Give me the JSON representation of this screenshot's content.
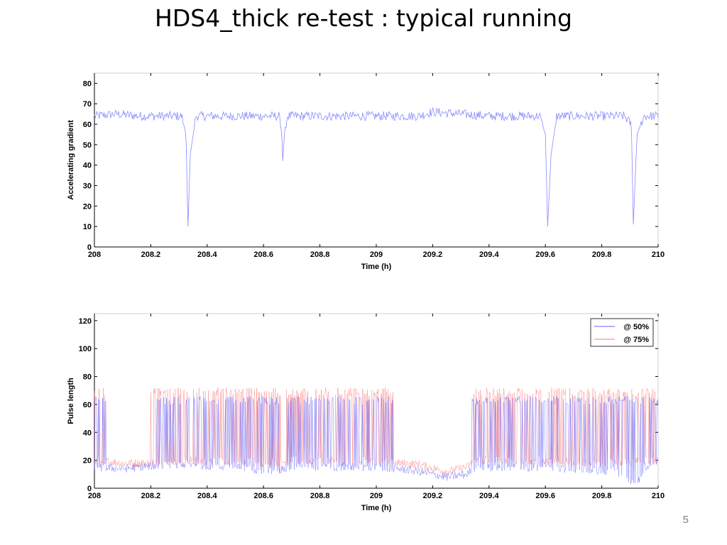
{
  "slide": {
    "title": "HDS4_thick re-test : typical running",
    "page_number": "5"
  },
  "colors": {
    "series_50": "#6666ff",
    "series_75": "#ff7777",
    "gradient": "#8a8aff",
    "axis": "#000000",
    "frame": "#d0d0d0"
  },
  "chart_data": [
    {
      "type": "line",
      "title": "",
      "xlabel": "Time (h)",
      "ylabel": "Accelerating gradient",
      "xlim": [
        208,
        210
      ],
      "ylim": [
        0,
        85
      ],
      "xticks": [
        "208",
        "208.2",
        "208.4",
        "208.6",
        "208.8",
        "209",
        "209.2",
        "209.4",
        "209.6",
        "209.8",
        "210"
      ],
      "yticks": [
        "0",
        "10",
        "20",
        "30",
        "40",
        "50",
        "60",
        "70",
        "80"
      ],
      "grid": false,
      "series": [
        {
          "x": [
            208.0,
            208.08,
            208.16,
            208.24,
            208.31,
            208.325,
            208.332,
            208.34,
            208.36,
            208.45,
            208.55,
            208.645,
            208.655,
            208.665,
            208.668,
            208.675,
            208.685,
            208.72,
            208.85,
            208.95,
            209.05,
            209.15,
            209.2,
            209.3,
            209.4,
            209.5,
            209.58,
            209.6,
            209.608,
            209.62,
            209.64,
            209.75,
            209.88,
            209.905,
            209.912,
            209.925,
            209.95,
            210.0
          ],
          "y": [
            64,
            65,
            64,
            64,
            64,
            55,
            10,
            45,
            64,
            64,
            64,
            64,
            64,
            55,
            42,
            57,
            64,
            64,
            64,
            64,
            64,
            64,
            66,
            65,
            64,
            64,
            64,
            55,
            10,
            45,
            64,
            64,
            64,
            60,
            11,
            55,
            64,
            64
          ]
        }
      ]
    },
    {
      "type": "line",
      "title": "",
      "xlabel": "Time (h)",
      "ylabel": "Pulse length",
      "xlim": [
        208,
        210
      ],
      "ylim": [
        0,
        125
      ],
      "xticks": [
        "208",
        "208.2",
        "208.4",
        "208.6",
        "208.8",
        "209",
        "209.2",
        "209.4",
        "209.6",
        "209.8",
        "210"
      ],
      "yticks": [
        "0",
        "20",
        "40",
        "60",
        "80",
        "100",
        "120"
      ],
      "grid": false,
      "legend_position": "top-right",
      "series": [
        {
          "name": "@ 50%",
          "x": [
            208.0,
            208.1,
            208.2,
            208.33,
            208.5,
            208.65,
            208.7,
            208.85,
            209.0,
            209.08,
            209.15,
            209.25,
            209.32,
            209.35,
            209.5,
            209.7,
            209.85,
            209.9,
            209.92,
            209.95,
            210.0
          ],
          "y": [
            15,
            14,
            16,
            17,
            15,
            12,
            16,
            15,
            15,
            14,
            12,
            8,
            10,
            15,
            15,
            14,
            12,
            6,
            1,
            15,
            20
          ],
          "spike_high": 66,
          "spike_ranges": [
            [
              208.0,
              208.04
            ],
            [
              208.22,
              208.66
            ],
            [
              208.68,
              209.06
            ],
            [
              209.34,
              210.0
            ]
          ]
        },
        {
          "name": "@ 75%",
          "x": [
            208.0,
            208.1,
            208.2,
            208.33,
            208.5,
            208.65,
            208.7,
            208.85,
            209.0,
            209.08,
            209.15,
            209.25,
            209.32,
            209.35,
            209.5,
            209.7,
            209.85,
            209.95,
            210.0
          ],
          "y": [
            20,
            18,
            18,
            20,
            19,
            18,
            20,
            20,
            19,
            18,
            17,
            12,
            15,
            20,
            20,
            19,
            18,
            20,
            20
          ],
          "spike_high": 72,
          "spike_ranges": [
            [
              208.0,
              208.04
            ],
            [
              208.2,
              208.66
            ],
            [
              208.68,
              209.06
            ],
            [
              209.34,
              210.0
            ]
          ]
        }
      ]
    }
  ]
}
